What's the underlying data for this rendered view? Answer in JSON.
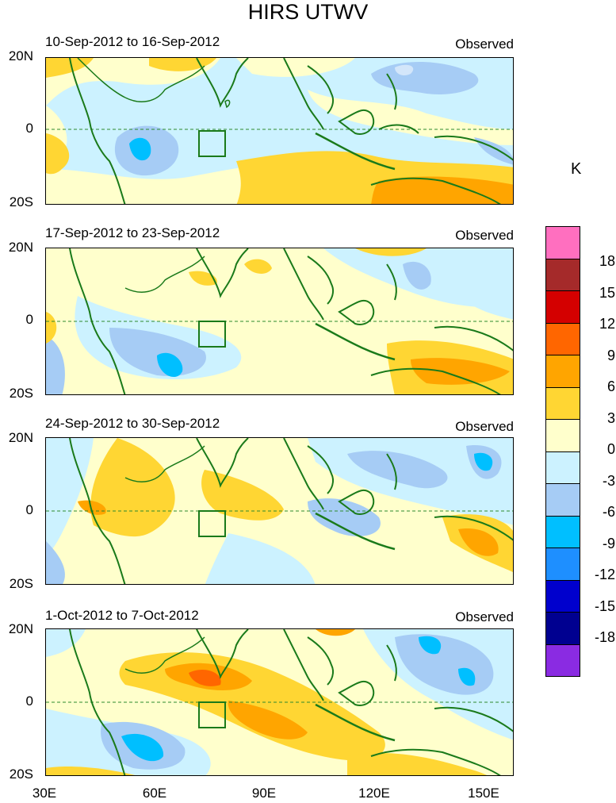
{
  "title": "HIRS UTWV",
  "panels": [
    {
      "date_range": "10-Sep-2012 to 16-Sep-2012",
      "label": "Observed"
    },
    {
      "date_range": "17-Sep-2012 to 23-Sep-2012",
      "label": "Observed"
    },
    {
      "date_range": "24-Sep-2012 to 30-Sep-2012",
      "label": "Observed"
    },
    {
      "date_range": "1-Oct-2012 to 7-Oct-2012",
      "label": "Observed"
    }
  ],
  "axes": {
    "lat_ticks": [
      "20N",
      "0",
      "20S"
    ],
    "lon_ticks": [
      "30E",
      "60E",
      "90E",
      "120E",
      "150E"
    ]
  },
  "colorbar": {
    "unit": "K",
    "labels": [
      "18",
      "15",
      "12",
      "9",
      "6",
      "3",
      "0",
      "-3",
      "-6",
      "-9",
      "-12",
      "-15",
      "-18"
    ],
    "colors": [
      "#ff6fbf",
      "#a52a2a",
      "#d40000",
      "#ff6600",
      "#ffa500",
      "#ffd633",
      "#ffffcc",
      "#ccf2ff",
      "#a6ccf5",
      "#00bfff",
      "#1e8fff",
      "#0000cd",
      "#000090",
      "#8a2be2"
    ]
  }
}
